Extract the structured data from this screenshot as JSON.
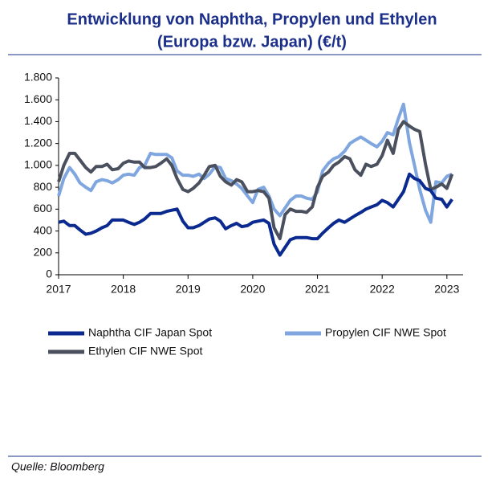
{
  "chart_data": {
    "type": "line",
    "title": "Entwicklung von Naphtha, Propylen und Ethylen",
    "subtitle": "(Europa bzw. Japan) (€/t)",
    "source": "Quelle: Bloomberg",
    "x": [
      2017,
      2017.08,
      2017.17,
      2017.25,
      2017.33,
      2017.42,
      2017.5,
      2017.58,
      2017.67,
      2017.75,
      2017.83,
      2017.92,
      2018,
      2018.08,
      2018.17,
      2018.25,
      2018.33,
      2018.42,
      2018.5,
      2018.58,
      2018.67,
      2018.75,
      2018.83,
      2018.92,
      2019,
      2019.08,
      2019.17,
      2019.25,
      2019.33,
      2019.42,
      2019.5,
      2019.58,
      2019.67,
      2019.75,
      2019.83,
      2019.92,
      2020,
      2020.08,
      2020.17,
      2020.25,
      2020.33,
      2020.42,
      2020.5,
      2020.58,
      2020.67,
      2020.75,
      2020.83,
      2020.92,
      2021,
      2021.08,
      2021.17,
      2021.25,
      2021.33,
      2021.42,
      2021.5,
      2021.58,
      2021.67,
      2021.75,
      2021.83,
      2021.92,
      2022,
      2022.08,
      2022.17,
      2022.25,
      2022.33,
      2022.42,
      2022.5,
      2022.58,
      2022.67,
      2022.75,
      2022.83,
      2022.92,
      2023,
      2023.08
    ],
    "series": [
      {
        "name": "Naphtha CIF Japan Spot",
        "color": "#0b2a8f",
        "values": [
          480,
          490,
          450,
          450,
          410,
          370,
          380,
          400,
          430,
          450,
          500,
          500,
          500,
          480,
          460,
          480,
          510,
          560,
          560,
          560,
          580,
          590,
          600,
          490,
          430,
          430,
          450,
          480,
          510,
          520,
          490,
          420,
          450,
          470,
          440,
          450,
          480,
          490,
          500,
          470,
          280,
          180,
          250,
          320,
          340,
          340,
          340,
          330,
          330,
          380,
          430,
          470,
          500,
          480,
          510,
          540,
          570,
          600,
          620,
          640,
          680,
          660,
          620,
          690,
          760,
          920,
          880,
          860,
          790,
          770,
          700,
          690,
          620,
          690
        ]
      },
      {
        "name": "Propylen CIF NWE Spot",
        "color": "#80a6e0",
        "values": [
          720,
          880,
          980,
          920,
          840,
          800,
          770,
          850,
          870,
          860,
          840,
          870,
          910,
          920,
          910,
          980,
          1000,
          1110,
          1100,
          1100,
          1100,
          1070,
          950,
          910,
          910,
          900,
          920,
          880,
          920,
          990,
          980,
          880,
          860,
          830,
          790,
          720,
          660,
          780,
          800,
          720,
          600,
          540,
          610,
          680,
          720,
          720,
          700,
          690,
          760,
          950,
          1020,
          1060,
          1080,
          1130,
          1200,
          1230,
          1260,
          1230,
          1200,
          1170,
          1220,
          1300,
          1280,
          1430,
          1560,
          1210,
          1000,
          780,
          590,
          480,
          850,
          840,
          900,
          920
        ]
      },
      {
        "name": "Ethylen CIF NWE Spot",
        "color": "#4a505e",
        "values": [
          850,
          1000,
          1110,
          1110,
          1050,
          980,
          940,
          990,
          990,
          1010,
          960,
          970,
          1020,
          1040,
          1030,
          1030,
          980,
          980,
          990,
          1020,
          1060,
          1000,
          880,
          780,
          760,
          790,
          840,
          910,
          990,
          1000,
          900,
          850,
          820,
          870,
          850,
          760,
          760,
          770,
          760,
          700,
          430,
          330,
          550,
          600,
          580,
          580,
          570,
          620,
          800,
          900,
          940,
          1000,
          1030,
          1080,
          1060,
          960,
          910,
          1010,
          990,
          1010,
          1090,
          1230,
          1110,
          1330,
          1400,
          1360,
          1330,
          1310,
          1010,
          780,
          800,
          830,
          790,
          920
        ]
      }
    ],
    "xlim": [
      2017,
      2023.25
    ],
    "xticks": [
      2017,
      2018,
      2019,
      2020,
      2021,
      2022,
      2023
    ],
    "ylim": [
      0,
      1800
    ],
    "yticks": [
      0,
      200,
      400,
      600,
      800,
      {
        "value": 1000,
        "label": "1.000"
      },
      {
        "value": 1200,
        "label": "1.200"
      },
      {
        "value": 1400,
        "label": "1.400"
      },
      {
        "value": 1600,
        "label": "1.600"
      },
      {
        "value": 1800,
        "label": "1.800"
      }
    ]
  }
}
